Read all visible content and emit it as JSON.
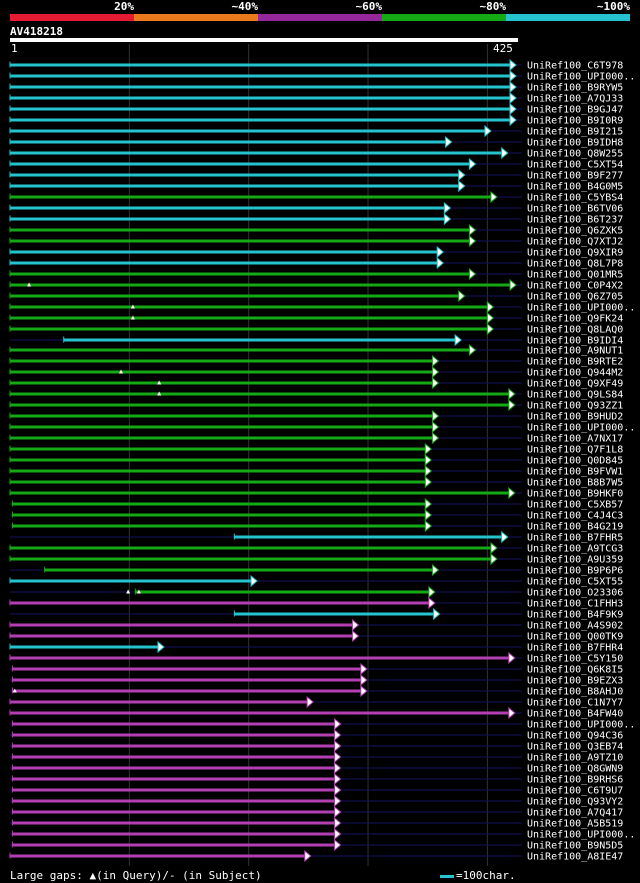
{
  "color_scale": {
    "labels": [
      "20%",
      "~40%",
      "~60%",
      "~80%",
      "~100%"
    ],
    "colors": [
      "#e41b33",
      "#ea7a1c",
      "#94289a",
      "#16a916",
      "#25c3cf"
    ]
  },
  "query": {
    "id": "AV418218",
    "start": "1",
    "end": "425",
    "length": 425
  },
  "footer": {
    "legend": "Large gaps: ▲(in Query)/- (in Subject)",
    "scale": "=100char."
  },
  "colors": {
    "bg": "#000000",
    "grid": "#333333",
    "baseline": "#151560",
    "cyan": "#25c3cf",
    "green": "#16a916",
    "purple": "#b43fb4"
  },
  "chart_data": {
    "type": "alignment",
    "x_range": [
      1,
      425
    ],
    "hits": [
      {
        "name": "UniRef100_C6T978",
        "start": 1,
        "end": 425,
        "identity": "cyan"
      },
      {
        "name": "UniRef100_UPI000..",
        "start": 1,
        "end": 425,
        "identity": "cyan"
      },
      {
        "name": "UniRef100_B9RYW5",
        "start": 1,
        "end": 425,
        "identity": "cyan"
      },
      {
        "name": "UniRef100_A7QJ33",
        "start": 1,
        "end": 425,
        "identity": "cyan"
      },
      {
        "name": "UniRef100_B9GJ47",
        "start": 1,
        "end": 425,
        "identity": "cyan"
      },
      {
        "name": "UniRef100_B9I0R9",
        "start": 1,
        "end": 425,
        "identity": "cyan"
      },
      {
        "name": "UniRef100_B9I215",
        "start": 1,
        "end": 404,
        "identity": "cyan"
      },
      {
        "name": "UniRef100_B9IDH8",
        "start": 1,
        "end": 371,
        "identity": "cyan"
      },
      {
        "name": "UniRef100_Q8W255",
        "start": 1,
        "end": 418,
        "identity": "cyan"
      },
      {
        "name": "UniRef100_C5XT54",
        "start": 1,
        "end": 391,
        "identity": "cyan"
      },
      {
        "name": "UniRef100_B9F277",
        "start": 1,
        "end": 382,
        "identity": "cyan"
      },
      {
        "name": "UniRef100_B4G0M5",
        "start": 1,
        "end": 382,
        "identity": "cyan"
      },
      {
        "name": "UniRef100_C5YBS4",
        "start": 1,
        "end": 409,
        "identity": "green"
      },
      {
        "name": "UniRef100_B6TV06",
        "start": 1,
        "end": 370,
        "identity": "cyan"
      },
      {
        "name": "UniRef100_B6T237",
        "start": 1,
        "end": 370,
        "identity": "cyan"
      },
      {
        "name": "UniRef100_Q6ZXK5",
        "start": 1,
        "end": 391,
        "identity": "green"
      },
      {
        "name": "UniRef100_Q7XTJ2",
        "start": 1,
        "end": 391,
        "identity": "green"
      },
      {
        "name": "UniRef100_Q9XIR9",
        "start": 1,
        "end": 364,
        "identity": "cyan"
      },
      {
        "name": "UniRef100_Q8L7P8",
        "start": 1,
        "end": 364,
        "identity": "cyan"
      },
      {
        "name": "UniRef100_Q01MR5",
        "start": 1,
        "end": 391,
        "identity": "green"
      },
      {
        "name": "UniRef100_C0P4X2",
        "start": 1,
        "end": 425,
        "identity": "green"
      },
      {
        "name": "UniRef100_Q6Z705",
        "start": 1,
        "end": 382,
        "identity": "green",
        "gap_q": [
          17
        ]
      },
      {
        "name": "UniRef100_UPI000..",
        "start": 1,
        "end": 406,
        "identity": "green"
      },
      {
        "name": "UniRef100_Q9FK24",
        "start": 1,
        "end": 406,
        "identity": "green",
        "gap_q": [
          104
        ]
      },
      {
        "name": "UniRef100_Q8LAQ0",
        "start": 1,
        "end": 406,
        "identity": "green",
        "gap_q": [
          104
        ]
      },
      {
        "name": "UniRef100_B9IDI4",
        "start": 46,
        "end": 379,
        "identity": "cyan"
      },
      {
        "name": "UniRef100_A9NUT1",
        "start": 1,
        "end": 391,
        "identity": "green"
      },
      {
        "name": "UniRef100_B9RTE2",
        "start": 1,
        "end": 360,
        "identity": "green"
      },
      {
        "name": "UniRef100_Q944M2",
        "start": 1,
        "end": 360,
        "identity": "green"
      },
      {
        "name": "UniRef100_Q9XF49",
        "start": 1,
        "end": 360,
        "identity": "green",
        "gap_q": [
          94
        ]
      },
      {
        "name": "UniRef100_Q9LS84",
        "start": 1,
        "end": 424,
        "identity": "green",
        "gap_q": [
          126
        ]
      },
      {
        "name": "UniRef100_Q93ZZ1",
        "start": 1,
        "end": 424,
        "identity": "green",
        "gap_q": [
          126
        ]
      },
      {
        "name": "UniRef100_B9HUD2",
        "start": 1,
        "end": 360,
        "identity": "green"
      },
      {
        "name": "UniRef100_UPI000..",
        "start": 1,
        "end": 360,
        "identity": "green"
      },
      {
        "name": "UniRef100_A7NX17",
        "start": 1,
        "end": 360,
        "identity": "green"
      },
      {
        "name": "UniRef100_Q7F1L8",
        "start": 1,
        "end": 354,
        "identity": "green"
      },
      {
        "name": "UniRef100_Q0D845",
        "start": 1,
        "end": 354,
        "identity": "green"
      },
      {
        "name": "UniRef100_B9FVW1",
        "start": 1,
        "end": 354,
        "identity": "green"
      },
      {
        "name": "UniRef100_B8B7W5",
        "start": 1,
        "end": 354,
        "identity": "green"
      },
      {
        "name": "UniRef100_B9HKF0",
        "start": 1,
        "end": 424,
        "identity": "green"
      },
      {
        "name": "UniRef100_C5XB57",
        "start": 3,
        "end": 354,
        "identity": "green"
      },
      {
        "name": "UniRef100_C4J4C3",
        "start": 3,
        "end": 354,
        "identity": "green"
      },
      {
        "name": "UniRef100_B4G219",
        "start": 3,
        "end": 354,
        "identity": "green"
      },
      {
        "name": "UniRef100_B7FHR5",
        "start": 189,
        "end": 418,
        "identity": "cyan"
      },
      {
        "name": "UniRef100_A9TCG3",
        "start": 1,
        "end": 409,
        "identity": "green"
      },
      {
        "name": "UniRef100_A9U359",
        "start": 1,
        "end": 409,
        "identity": "green"
      },
      {
        "name": "UniRef100_B9P6P6",
        "start": 30,
        "end": 360,
        "identity": "green"
      },
      {
        "name": "UniRef100_C5XT55",
        "start": 1,
        "end": 208,
        "identity": "cyan"
      },
      {
        "name": "UniRef100_O23306",
        "start": 106,
        "end": 357,
        "identity": "green"
      },
      {
        "name": "UniRef100_C1FHH3",
        "start": 1,
        "end": 357,
        "identity": "purple",
        "gap_q": [
          100,
          109
        ]
      },
      {
        "name": "UniRef100_B4F9K9",
        "start": 189,
        "end": 361,
        "identity": "cyan"
      },
      {
        "name": "UniRef100_A4S902",
        "start": 1,
        "end": 293,
        "identity": "purple"
      },
      {
        "name": "UniRef100_Q00TK9",
        "start": 1,
        "end": 293,
        "identity": "purple"
      },
      {
        "name": "UniRef100_B7FHR4",
        "start": 1,
        "end": 130,
        "identity": "cyan"
      },
      {
        "name": "UniRef100_C5Y150",
        "start": 1,
        "end": 424,
        "identity": "purple"
      },
      {
        "name": "UniRef100_Q6K8I5",
        "start": 3,
        "end": 300,
        "identity": "purple"
      },
      {
        "name": "UniRef100_B9EZX3",
        "start": 3,
        "end": 300,
        "identity": "purple"
      },
      {
        "name": "UniRef100_B8AHJ0",
        "start": 3,
        "end": 300,
        "identity": "purple"
      },
      {
        "name": "UniRef100_C1N7Y7",
        "start": 1,
        "end": 255,
        "identity": "purple",
        "gap_q": [
          5
        ]
      },
      {
        "name": "UniRef100_B4FW40",
        "start": 1,
        "end": 424,
        "identity": "purple"
      },
      {
        "name": "UniRef100_UPI000..",
        "start": 3,
        "end": 278,
        "identity": "purple"
      },
      {
        "name": "UniRef100_Q94C36",
        "start": 3,
        "end": 278,
        "identity": "purple"
      },
      {
        "name": "UniRef100_Q3EB74",
        "start": 3,
        "end": 278,
        "identity": "purple"
      },
      {
        "name": "UniRef100_A9TZ10",
        "start": 3,
        "end": 278,
        "identity": "purple"
      },
      {
        "name": "UniRef100_Q8GWN9",
        "start": 3,
        "end": 278,
        "identity": "purple"
      },
      {
        "name": "UniRef100_B9RHS6",
        "start": 3,
        "end": 278,
        "identity": "purple"
      },
      {
        "name": "UniRef100_C6T9U7",
        "start": 3,
        "end": 278,
        "identity": "purple"
      },
      {
        "name": "UniRef100_Q93VY2",
        "start": 3,
        "end": 278,
        "identity": "purple"
      },
      {
        "name": "UniRef100_A7Q417",
        "start": 3,
        "end": 278,
        "identity": "purple"
      },
      {
        "name": "UniRef100_A5B519",
        "start": 3,
        "end": 278,
        "identity": "purple"
      },
      {
        "name": "UniRef100_UPI000..",
        "start": 3,
        "end": 278,
        "identity": "purple"
      },
      {
        "name": "UniRef100_B9N5D5",
        "start": 3,
        "end": 278,
        "identity": "purple"
      },
      {
        "name": "UniRef100_A8IE47",
        "start": 1,
        "end": 253,
        "identity": "purple"
      }
    ]
  }
}
